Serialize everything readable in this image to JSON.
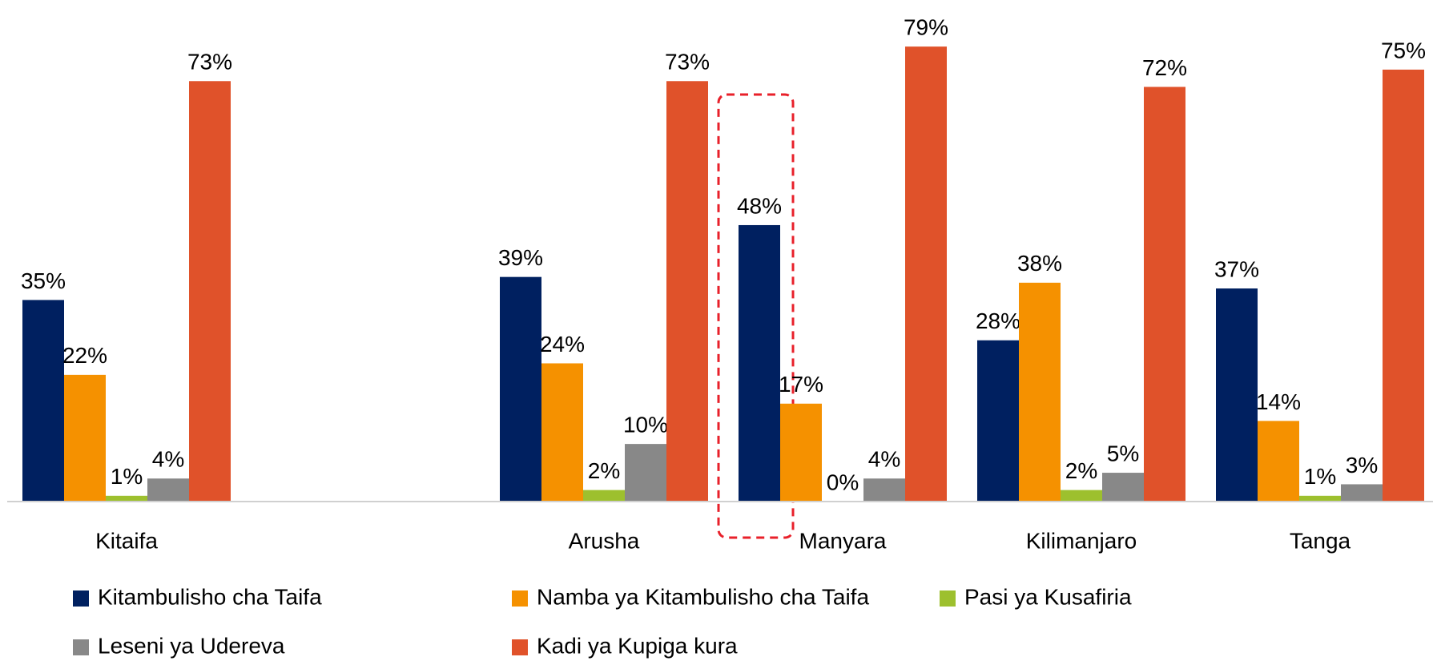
{
  "chart_data": {
    "type": "bar",
    "categories": [
      "Kitaifa",
      null,
      "Arusha",
      "Manyara",
      "Kilimanjaro",
      "Tanga"
    ],
    "series": [
      {
        "name": "Kitambulisho cha Taifa",
        "color": "#002060",
        "values": [
          35,
          null,
          39,
          48,
          28,
          37
        ],
        "value_labels": [
          "35%",
          null,
          "39%",
          "48%",
          "28%",
          "37%"
        ]
      },
      {
        "name": "Namba ya Kitambulisho cha Taifa",
        "color": "#f59100",
        "values": [
          22,
          null,
          24,
          17,
          38,
          14
        ],
        "value_labels": [
          "22%",
          null,
          "24%",
          "17%",
          "38%",
          "14%"
        ]
      },
      {
        "name": "Pasi ya Kusafiria",
        "color": "#9dc02e",
        "values": [
          1,
          null,
          2,
          0,
          2,
          1
        ],
        "value_labels": [
          "1%",
          null,
          "2%",
          "0%",
          "2%",
          "1%"
        ]
      },
      {
        "name": "Leseni ya Udereva",
        "color": "#888888",
        "values": [
          4,
          null,
          10,
          4,
          5,
          3
        ],
        "value_labels": [
          "4%",
          null,
          "10%",
          "4%",
          "5%",
          "3%"
        ]
      },
      {
        "name": "Kadi ya Kupiga kura",
        "color": "#e0522a",
        "values": [
          73,
          null,
          73,
          79,
          72,
          75
        ],
        "value_labels": [
          "73%",
          null,
          "73%",
          "79%",
          "72%",
          "75%"
        ]
      }
    ],
    "ylim": [
      0,
      85
    ],
    "grid": false
  }
}
